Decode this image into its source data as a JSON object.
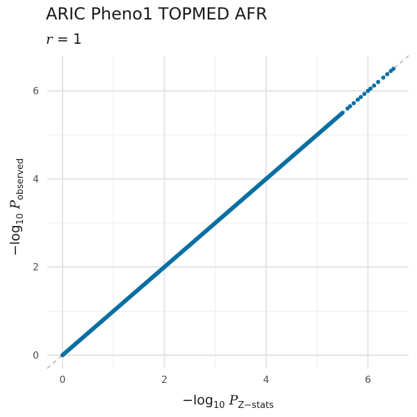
{
  "chart_data": {
    "type": "scatter",
    "title": "ARIC Pheno1 TOPMED AFR",
    "subtitle": {
      "var": "r",
      "rest": " = 1"
    },
    "xlabel": {
      "prefix": "−log",
      "sub1": "10",
      "var": "P",
      "sub2": "Z−stats"
    },
    "ylabel": {
      "prefix": "−log",
      "sub1": "10",
      "var": "P",
      "sub2": "observed"
    },
    "xlim": [
      -0.3,
      6.8
    ],
    "ylim": [
      -0.3,
      6.8
    ],
    "x_ticks": [
      0,
      2,
      4,
      6
    ],
    "y_ticks": [
      0,
      2,
      4,
      6
    ],
    "grid": true,
    "reference_line": {
      "slope": 1,
      "intercept": 0,
      "style": "dashed",
      "color": "#b3b3b3"
    },
    "point_color": "#0a6fa3",
    "points_x": [
      0,
      0.25,
      0.5,
      0.75,
      1.0,
      1.25,
      1.5,
      1.75,
      2.0,
      2.25,
      2.5,
      2.75,
      3.0,
      3.25,
      3.5,
      3.75,
      4.0,
      4.25,
      4.5,
      4.75,
      5.0,
      5.25,
      5.5,
      5.6,
      5.65,
      5.72,
      5.8,
      5.86,
      5.93,
      6.0,
      6.05,
      6.12,
      6.2,
      6.3,
      6.38,
      6.45,
      6.5
    ],
    "points_y": [
      0,
      0.25,
      0.5,
      0.75,
      1.0,
      1.25,
      1.5,
      1.75,
      2.0,
      2.25,
      2.5,
      2.75,
      3.0,
      3.25,
      3.5,
      3.75,
      4.0,
      4.25,
      4.5,
      4.75,
      5.0,
      5.25,
      5.5,
      5.6,
      5.65,
      5.72,
      5.8,
      5.86,
      5.93,
      6.0,
      6.05,
      6.12,
      6.2,
      6.3,
      6.38,
      6.45,
      6.5
    ]
  }
}
